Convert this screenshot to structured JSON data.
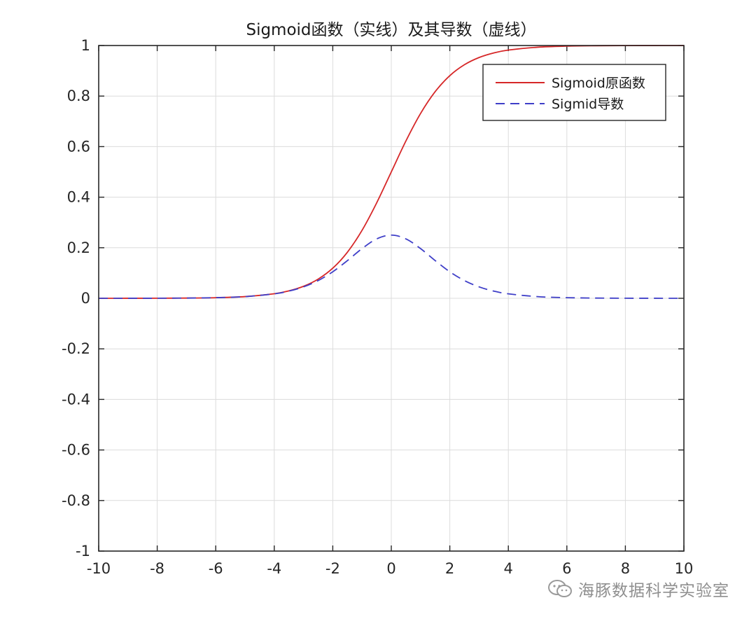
{
  "chart_data": {
    "type": "line",
    "title": "Sigmoid函数（实线）及其导数（虚线）",
    "xlabel": "",
    "ylabel": "",
    "xlim": [
      -10,
      10
    ],
    "ylim": [
      -1,
      1
    ],
    "grid": true,
    "legend_position": "top-right",
    "x_ticks": [
      "-10",
      "-8",
      "-6",
      "-4",
      "-2",
      "0",
      "2",
      "4",
      "6",
      "8",
      "10"
    ],
    "y_ticks": [
      "1",
      "0.8",
      "0.6",
      "0.4",
      "0.2",
      "0",
      "-0.2",
      "-0.4",
      "-0.6",
      "-0.8",
      "-1"
    ],
    "x": [
      -10,
      -9,
      -8,
      -7,
      -6,
      -5,
      -4,
      -3.5,
      -3,
      -2.5,
      -2,
      -1.5,
      -1,
      -0.5,
      0,
      0.5,
      1,
      1.5,
      2,
      2.5,
      3,
      3.5,
      4,
      5,
      6,
      7,
      8,
      9,
      10
    ],
    "series": [
      {
        "name": "Sigmoid原函数",
        "color": "#d62728",
        "style": "solid",
        "values": [
          0.0,
          0.0001,
          0.0003,
          0.0009,
          0.0025,
          0.0067,
          0.018,
          0.0293,
          0.0474,
          0.0759,
          0.1192,
          0.1824,
          0.2689,
          0.3775,
          0.5,
          0.6225,
          0.7311,
          0.8176,
          0.8808,
          0.9241,
          0.9526,
          0.9707,
          0.982,
          0.9933,
          0.9975,
          0.9991,
          0.9997,
          0.9999,
          1.0
        ]
      },
      {
        "name": "Sigmid导数",
        "color": "#3f3fc8",
        "style": "dashed",
        "values": [
          0.0,
          0.0001,
          0.0003,
          0.0009,
          0.0025,
          0.0066,
          0.0177,
          0.0285,
          0.0452,
          0.0701,
          0.105,
          0.1491,
          0.1966,
          0.235,
          0.25,
          0.235,
          0.1966,
          0.1491,
          0.105,
          0.0701,
          0.0452,
          0.0285,
          0.0177,
          0.0066,
          0.0025,
          0.0009,
          0.0003,
          0.0001,
          0.0
        ]
      }
    ]
  },
  "watermark": {
    "text": "海豚数据科学实验室",
    "icon": "wechat-icon"
  }
}
